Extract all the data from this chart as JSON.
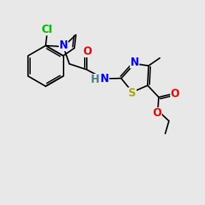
{
  "background_color": "#e8e8e8",
  "bond_color": "#000000",
  "bond_width": 1.5,
  "atoms": {
    "Cl": {
      "color": "#00bb00"
    },
    "N": {
      "color": "#0000ff"
    },
    "O": {
      "color": "#ff0000"
    },
    "S": {
      "color": "#aaaa00"
    },
    "H": {
      "color": "#4a8080"
    }
  },
  "figsize": [
    3.0,
    3.0
  ],
  "dpi": 100
}
